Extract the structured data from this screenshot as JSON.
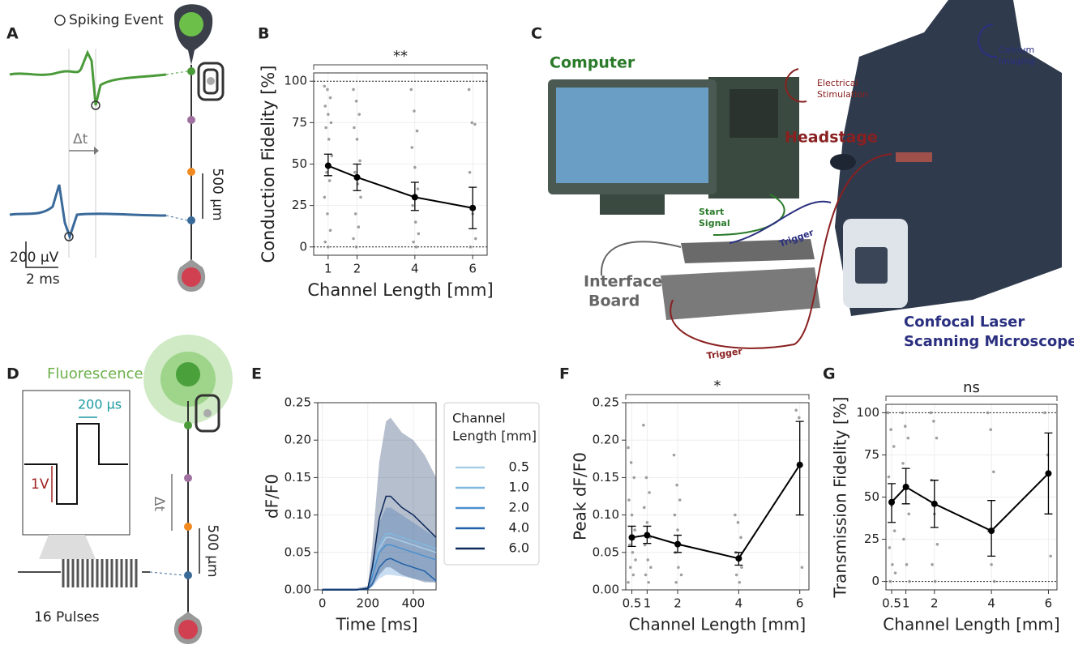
{
  "panels": [
    "A",
    "B",
    "C",
    "D",
    "E",
    "F",
    "G"
  ],
  "annotations": {
    "spiking_event": "Spiking Event",
    "delta_t_a": "Δt",
    "distance_a": "500 µm",
    "scale_v": "200 µV",
    "scale_t": "2 ms",
    "computer": "Computer",
    "electrical_stimulation": [
      "Electrical",
      "Stimulation"
    ],
    "calcium_imaging": [
      "Calcium",
      "Imaging"
    ],
    "headstage": "Headstage",
    "start_signal": [
      "Start",
      "Signal"
    ],
    "trigger_1": "Trigger",
    "trigger_2": "Trigger",
    "interface_board": [
      "Interface",
      "Board"
    ],
    "microscope": [
      "Confocal Laser",
      "Scanning Microscope"
    ],
    "fluorescence": "Fluorescence",
    "pulse_width": "200 µs",
    "amplitude": "1V",
    "delta_t_d": "Δt",
    "distance_d": "500 µm",
    "pulses": "16 Pulses"
  },
  "chart_data": [
    {
      "type": "errorbar",
      "xlabel": "Channel Length [mm]",
      "ylabel": "Conduction Fidelity [%]",
      "significance": "**",
      "x": [
        1,
        2,
        4,
        6
      ],
      "values": [
        49,
        42,
        30,
        23.5
      ],
      "lower": [
        43,
        34,
        22,
        11
      ],
      "upper": [
        56,
        50,
        39,
        36
      ],
      "points": [
        [
          97,
          95,
          90,
          85,
          80,
          75,
          72,
          65,
          55,
          45,
          40,
          30,
          20,
          10,
          3,
          0
        ],
        [
          95,
          88,
          80,
          72,
          65,
          52,
          45,
          38,
          30,
          20,
          12,
          5,
          0
        ],
        [
          95,
          82,
          70,
          60,
          48,
          35,
          25,
          15,
          8,
          3,
          0
        ],
        [
          95,
          75,
          74,
          45,
          20,
          5,
          0
        ]
      ],
      "color": "#000000",
      "point_color": "#888888",
      "xlim": [
        0.5,
        6.5
      ],
      "ylim": [
        -5,
        105
      ],
      "xticks": [
        1,
        2,
        4,
        6
      ],
      "yticks": [
        0,
        25,
        50,
        75,
        100
      ],
      "hlines": [
        0,
        100
      ],
      "grid": true
    },
    {
      "type": "line",
      "xlabel": "Time [ms]",
      "ylabel": "dF/F0",
      "legend_title": [
        "Channel",
        "Length [mm]"
      ],
      "x": [
        0,
        50,
        100,
        150,
        200,
        220,
        250,
        280,
        300,
        350,
        400,
        450,
        500
      ],
      "series": [
        {
          "name": "0.5",
          "color": "#a9cfe8",
          "values": [
            0,
            0,
            0,
            0,
            0.002,
            0.02,
            0.055,
            0.07,
            0.07,
            0.065,
            0.06,
            0.055,
            0.05
          ]
        },
        {
          "name": "1.0",
          "color": "#7fb8e0",
          "values": [
            0,
            0,
            0,
            0,
            0.002,
            0.02,
            0.06,
            0.075,
            0.075,
            0.07,
            0.065,
            0.06,
            0.055
          ]
        },
        {
          "name": "2.0",
          "color": "#4a90d0",
          "values": [
            0,
            0,
            0,
            0,
            0.002,
            0.018,
            0.05,
            0.06,
            0.06,
            0.055,
            0.05,
            0.045,
            0.04
          ],
          "lower": [
            0,
            0,
            0,
            0,
            0,
            0.004,
            0.015,
            0.02,
            0.02,
            0.018,
            0.015,
            0.012,
            0.01
          ],
          "upper": [
            0.002,
            0.002,
            0.002,
            0.002,
            0.004,
            0.04,
            0.09,
            0.11,
            0.11,
            0.1,
            0.09,
            0.08,
            0.07
          ]
        },
        {
          "name": "4.0",
          "color": "#2060a8",
          "values": [
            0,
            0,
            0,
            0,
            0.001,
            0.008,
            0.03,
            0.04,
            0.042,
            0.035,
            0.03,
            0.025,
            0.012
          ]
        },
        {
          "name": "6.0",
          "color": "#0d2a5c",
          "values": [
            0,
            0,
            0,
            0,
            0.002,
            0.03,
            0.095,
            0.125,
            0.125,
            0.11,
            0.1,
            0.085,
            0.07
          ],
          "lower": [
            0,
            0,
            0,
            0,
            0,
            0.005,
            0.02,
            0.03,
            0.03,
            0.02,
            0.015,
            0.01,
            0.01
          ],
          "upper": [
            0.002,
            0.002,
            0.002,
            0.002,
            0.005,
            0.06,
            0.17,
            0.225,
            0.23,
            0.21,
            0.2,
            0.18,
            0.15
          ]
        }
      ],
      "xlim": [
        -20,
        500
      ],
      "ylim": [
        0,
        0.25
      ],
      "xticks": [
        0,
        200,
        400
      ],
      "yticks": [
        {
          "value": 0,
          "label": "0.00"
        },
        {
          "value": 0.05,
          "label": "0.05"
        },
        {
          "value": 0.1,
          "label": "0.10"
        },
        {
          "value": 0.15,
          "label": "0.15"
        },
        {
          "value": 0.2,
          "label": "0.20"
        },
        {
          "value": 0.25,
          "label": "0.25"
        }
      ],
      "grid": true
    },
    {
      "type": "errorbar",
      "xlabel": "Channel Length [mm]",
      "ylabel": "Peak dF/F0",
      "significance": "*",
      "x": [
        0.5,
        1,
        2,
        4,
        6
      ],
      "values": [
        0.07,
        0.073,
        0.061,
        0.042,
        0.167
      ],
      "lower": [
        0.058,
        0.062,
        0.05,
        0.033,
        0.1
      ],
      "upper": [
        0.085,
        0.085,
        0.073,
        0.05,
        0.225
      ],
      "points": [
        [
          0.19,
          0.17,
          0.15,
          0.12,
          0.1,
          0.08,
          0.06,
          0.05,
          0.04,
          0.03,
          0.02,
          0.01
        ],
        [
          0.22,
          0.15,
          0.13,
          0.11,
          0.09,
          0.07,
          0.06,
          0.04,
          0.03,
          0.02,
          0.01
        ],
        [
          0.18,
          0.14,
          0.12,
          0.1,
          0.08,
          0.06,
          0.05,
          0.03,
          0.02,
          0.01
        ],
        [
          0.1,
          0.09,
          0.07,
          0.05,
          0.04,
          0.03,
          0.02,
          0.01
        ],
        [
          0.24,
          0.23,
          0.03
        ]
      ],
      "color": "#000000",
      "point_color": "#888888",
      "xlim": [
        0.3,
        6.3
      ],
      "ylim": [
        0,
        0.25
      ],
      "xticks": [
        0.5,
        1,
        2,
        4,
        6
      ],
      "yticks": [
        {
          "value": 0,
          "label": "0.00"
        },
        {
          "value": 0.05,
          "label": "0.05"
        },
        {
          "value": 0.1,
          "label": "0.10"
        },
        {
          "value": 0.15,
          "label": "0.15"
        },
        {
          "value": 0.2,
          "label": "0.20"
        },
        {
          "value": 0.25,
          "label": "0.25"
        }
      ],
      "hlines": [],
      "grid": true
    },
    {
      "type": "errorbar",
      "xlabel": "Channel Length [mm]",
      "ylabel": "Transmission Fidelity [%]",
      "significance": "ns",
      "x": [
        0.5,
        1,
        2,
        4,
        6
      ],
      "values": [
        47,
        56,
        46,
        30,
        64
      ],
      "lower": [
        35,
        46,
        32,
        15,
        40
      ],
      "upper": [
        58,
        67,
        60,
        48,
        88
      ],
      "points": [
        [
          100,
          90,
          80,
          62,
          45,
          30,
          20,
          10,
          5,
          0
        ],
        [
          100,
          92,
          85,
          70,
          55,
          40,
          25,
          10,
          0
        ],
        [
          100,
          95,
          85,
          60,
          40,
          22,
          10,
          0
        ],
        [
          100,
          90,
          65,
          30,
          10,
          0
        ],
        [
          100,
          75,
          15
        ]
      ],
      "color": "#000000",
      "point_color": "#888888",
      "xlim": [
        0.3,
        6.3
      ],
      "ylim": [
        -5,
        105
      ],
      "xticks": [
        0.5,
        1,
        2,
        4,
        6
      ],
      "yticks": [
        0,
        25,
        50,
        75,
        100
      ],
      "hlines": [
        0,
        100
      ],
      "grid": true
    }
  ]
}
